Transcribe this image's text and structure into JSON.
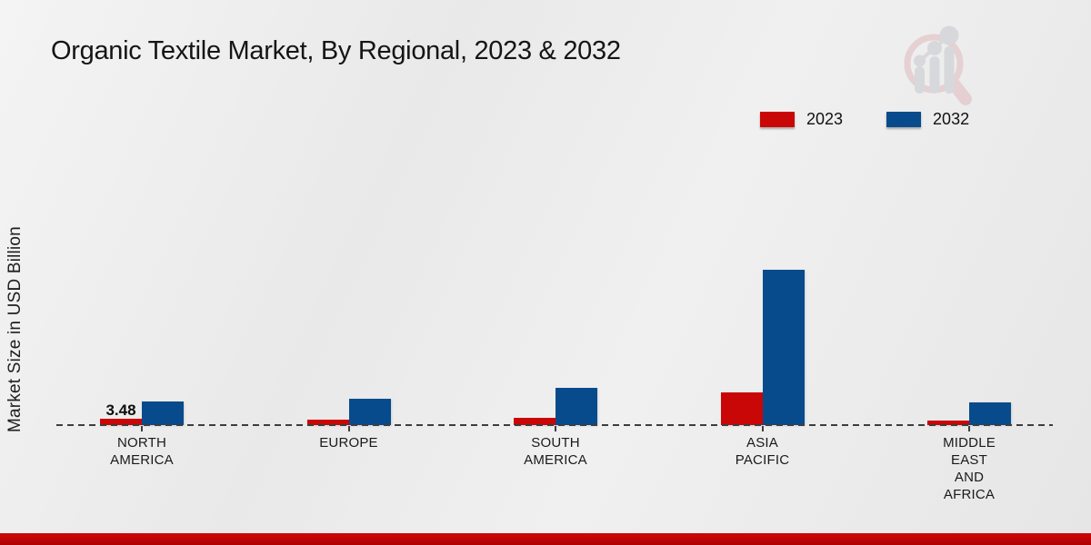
{
  "title": "Organic Textile Market, By Regional, 2023 & 2032",
  "watermark_icon": "magnifier-bar-chart-logo",
  "footer": {
    "accent_color": "#c40505"
  },
  "colors": {
    "series_2023": "#c90707",
    "series_2032": "#084b8c",
    "axis": "#3d3d3d",
    "background": "#ebebeb"
  },
  "chart_data": {
    "type": "bar",
    "title": "Organic Textile Market, By Regional, 2023 & 2032",
    "xlabel": "",
    "ylabel": "Market Size in USD Billion",
    "categories": [
      "NORTH AMERICA",
      "EUROPE",
      "SOUTH AMERICA",
      "ASIA PACIFIC",
      "MIDDLE EAST AND AFRICA"
    ],
    "category_label_lines": [
      [
        "NORTH",
        "AMERICA"
      ],
      [
        "EUROPE"
      ],
      [
        "SOUTH",
        "AMERICA"
      ],
      [
        "ASIA",
        "PACIFIC"
      ],
      [
        "MIDDLE",
        "EAST",
        "AND",
        "AFRICA"
      ]
    ],
    "series": [
      {
        "name": "2023",
        "color": "#c90707",
        "values": [
          3.48,
          2.8,
          4.0,
          18.0,
          2.5
        ]
      },
      {
        "name": "2032",
        "color": "#084b8c",
        "values": [
          13.0,
          14.5,
          20.5,
          85.5,
          12.5
        ]
      }
    ],
    "annotations": [
      {
        "category_index": 0,
        "series_index": 0,
        "text": "3.48"
      }
    ],
    "ylim": [
      0,
      90
    ],
    "grid": false,
    "y_axis_ticks_visible": false,
    "baseline_style": "dashed",
    "legend_position": "top-right"
  }
}
